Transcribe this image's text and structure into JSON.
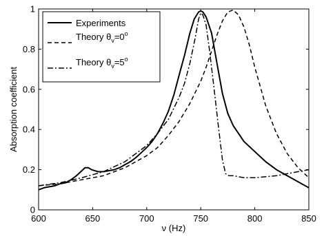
{
  "chart_data": {
    "type": "line",
    "xlabel": "ν (Hz)",
    "ylabel": "Absorption coefficient",
    "xlim": [
      600,
      850
    ],
    "ylim": [
      0,
      1
    ],
    "xticks": [
      600,
      650,
      700,
      750,
      800,
      850
    ],
    "yticks": [
      0,
      0.2,
      0.4,
      0.6,
      0.8,
      1
    ],
    "xtick_labels": [
      "600",
      "650",
      "700",
      "750",
      "800",
      "850"
    ],
    "ytick_labels": [
      "0",
      "0.2",
      "0.4",
      "0.6",
      "0.8",
      "1"
    ],
    "grid": false,
    "legend_position": "top-left",
    "series": [
      {
        "name": "Experiments",
        "style": "solid",
        "color": "#000000",
        "x": [
          600,
          605,
          610,
          615,
          620,
          625,
          630,
          635,
          640,
          643,
          646,
          649,
          652,
          655,
          660,
          665,
          670,
          675,
          680,
          685,
          690,
          695,
          700,
          705,
          710,
          715,
          720,
          725,
          730,
          735,
          740,
          744,
          748,
          750,
          752,
          755,
          760,
          765,
          770,
          775,
          780,
          790,
          800,
          810,
          820,
          830,
          840,
          850
        ],
        "y": [
          0.1,
          0.11,
          0.115,
          0.12,
          0.13,
          0.135,
          0.15,
          0.17,
          0.195,
          0.21,
          0.21,
          0.2,
          0.195,
          0.19,
          0.19,
          0.195,
          0.2,
          0.21,
          0.225,
          0.24,
          0.26,
          0.285,
          0.31,
          0.34,
          0.38,
          0.43,
          0.49,
          0.57,
          0.67,
          0.77,
          0.88,
          0.95,
          0.985,
          0.99,
          0.985,
          0.96,
          0.88,
          0.73,
          0.58,
          0.48,
          0.42,
          0.34,
          0.29,
          0.24,
          0.2,
          0.17,
          0.14,
          0.11
        ]
      },
      {
        "name": "Theory θ_v=0°",
        "style": "dashed",
        "color": "#000000",
        "x": [
          600,
          620,
          640,
          660,
          680,
          700,
          710,
          720,
          730,
          740,
          750,
          755,
          760,
          765,
          770,
          775,
          780,
          785,
          790,
          795,
          800,
          810,
          820,
          830,
          840,
          850
        ],
        "y": [
          0.12,
          0.13,
          0.15,
          0.17,
          0.21,
          0.27,
          0.31,
          0.37,
          0.44,
          0.53,
          0.64,
          0.71,
          0.79,
          0.87,
          0.94,
          0.985,
          0.995,
          0.97,
          0.91,
          0.82,
          0.71,
          0.52,
          0.38,
          0.28,
          0.21,
          0.16
        ]
      },
      {
        "name": "Theory θ_v=5°",
        "style": "dashdot",
        "color": "#000000",
        "x": [
          600,
          620,
          640,
          660,
          680,
          700,
          710,
          720,
          730,
          735,
          740,
          745,
          748,
          750,
          752,
          755,
          758,
          762,
          766,
          770,
          773,
          776,
          780,
          790,
          800,
          820,
          840,
          850
        ],
        "y": [
          0.12,
          0.135,
          0.16,
          0.19,
          0.24,
          0.32,
          0.38,
          0.45,
          0.56,
          0.63,
          0.73,
          0.86,
          0.95,
          0.98,
          0.97,
          0.92,
          0.8,
          0.62,
          0.43,
          0.25,
          0.18,
          0.17,
          0.17,
          0.16,
          0.16,
          0.17,
          0.19,
          0.2
        ]
      }
    ]
  },
  "legend": {
    "items": [
      {
        "prefix": "Experiments",
        "sub": "",
        "eq": "",
        "sup": ""
      },
      {
        "prefix": "Theory θ",
        "sub": "v",
        "eq": "=0",
        "sup": "o"
      },
      {
        "prefix": "Theory θ",
        "sub": "v",
        "eq": "=5",
        "sup": "o"
      }
    ]
  }
}
